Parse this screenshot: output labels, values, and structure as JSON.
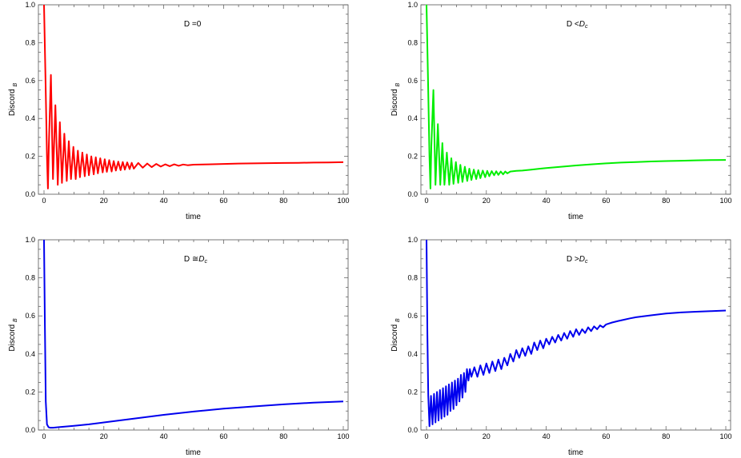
{
  "chart_data": [
    {
      "type": "line",
      "annotation": {
        "prefix": "D =0",
        "sym": "",
        "sub": ""
      },
      "xlabel": "time",
      "ylabel": {
        "main": "Discord",
        "sub": "B"
      },
      "xlim": [
        0,
        100
      ],
      "ylim": [
        0,
        1.0
      ],
      "xticks": [
        "0",
        "20",
        "40",
        "60",
        "80",
        "100"
      ],
      "yticks": [
        "0.0",
        "0.2",
        "0.4",
        "0.6",
        "0.8",
        "1.0"
      ],
      "grid": false,
      "series": [
        {
          "color": "#ff0000",
          "x": [
            0,
            0.5,
            1,
            1.3,
            1.6,
            2.3,
            3.0,
            3.8,
            4.6,
            5.3,
            6.0,
            6.8,
            7.6,
            8.3,
            9.0,
            9.8,
            10.6,
            11.3,
            12.0,
            12.8,
            13.6,
            14.3,
            15.0,
            15.8,
            16.6,
            17.3,
            18.0,
            18.8,
            19.6,
            20.3,
            21.0,
            21.8,
            22.6,
            23.3,
            24.0,
            24.8,
            25.6,
            26.3,
            27.0,
            27.8,
            28.6,
            29.3,
            30.0,
            31.5,
            33.0,
            34.5,
            36.0,
            37.5,
            39.0,
            40.5,
            42.0,
            43.5,
            45.0,
            46.5,
            48.0,
            50,
            55,
            60,
            65,
            70,
            75,
            80,
            85,
            90,
            95,
            100
          ],
          "y": [
            1.0,
            0.6,
            0.2,
            0.03,
            0.25,
            0.63,
            0.08,
            0.47,
            0.05,
            0.38,
            0.06,
            0.32,
            0.07,
            0.28,
            0.08,
            0.25,
            0.08,
            0.23,
            0.09,
            0.22,
            0.095,
            0.21,
            0.1,
            0.2,
            0.105,
            0.195,
            0.11,
            0.19,
            0.115,
            0.185,
            0.118,
            0.18,
            0.12,
            0.175,
            0.125,
            0.172,
            0.127,
            0.17,
            0.13,
            0.168,
            0.133,
            0.166,
            0.135,
            0.165,
            0.14,
            0.162,
            0.143,
            0.16,
            0.146,
            0.158,
            0.148,
            0.158,
            0.15,
            0.157,
            0.153,
            0.156,
            0.158,
            0.16,
            0.162,
            0.163,
            0.164,
            0.165,
            0.166,
            0.167,
            0.168,
            0.169
          ]
        }
      ]
    },
    {
      "type": "line",
      "annotation": {
        "prefix": "D <",
        "sym": "D",
        "sub": "c"
      },
      "xlabel": "time",
      "ylabel": {
        "main": "Discord",
        "sub": "B"
      },
      "xlim": [
        0,
        100
      ],
      "ylim": [
        0,
        1.0
      ],
      "xticks": [
        "0",
        "20",
        "40",
        "60",
        "80",
        "100"
      ],
      "yticks": [
        "0.0",
        "0.2",
        "0.4",
        "0.6",
        "0.8",
        "1.0"
      ],
      "grid": false,
      "series": [
        {
          "color": "#00ee00",
          "x": [
            0,
            0.5,
            1,
            1.3,
            1.6,
            2.3,
            3.0,
            3.8,
            4.6,
            5.3,
            6.0,
            6.8,
            7.6,
            8.3,
            9.0,
            9.8,
            10.6,
            11.3,
            12.0,
            12.8,
            13.6,
            14.3,
            15.0,
            15.8,
            16.6,
            17.3,
            18.0,
            18.8,
            19.6,
            20.3,
            21.0,
            21.8,
            22.6,
            23.3,
            24.0,
            24.8,
            25.6,
            26.3,
            27,
            28,
            30,
            32,
            35,
            38,
            40,
            45,
            50,
            55,
            60,
            65,
            70,
            75,
            80,
            85,
            90,
            95,
            100
          ],
          "y": [
            1.0,
            0.6,
            0.2,
            0.03,
            0.25,
            0.55,
            0.05,
            0.37,
            0.05,
            0.27,
            0.05,
            0.22,
            0.05,
            0.19,
            0.055,
            0.17,
            0.06,
            0.155,
            0.065,
            0.145,
            0.07,
            0.135,
            0.075,
            0.13,
            0.08,
            0.127,
            0.085,
            0.125,
            0.09,
            0.123,
            0.095,
            0.122,
            0.1,
            0.121,
            0.102,
            0.12,
            0.105,
            0.12,
            0.11,
            0.12,
            0.123,
            0.125,
            0.13,
            0.135,
            0.138,
            0.145,
            0.152,
            0.158,
            0.163,
            0.167,
            0.17,
            0.173,
            0.175,
            0.177,
            0.179,
            0.18,
            0.181
          ]
        }
      ]
    },
    {
      "type": "line",
      "annotation": {
        "prefix": "D ≅",
        "sym": "D",
        "sub": "c"
      },
      "xlabel": "time",
      "ylabel": {
        "main": "Discord",
        "sub": "B"
      },
      "xlim": [
        0,
        100
      ],
      "ylim": [
        0,
        1.0
      ],
      "xticks": [
        "0",
        "20",
        "40",
        "60",
        "80",
        "100"
      ],
      "yticks": [
        "0.0",
        "0.2",
        "0.4",
        "0.6",
        "0.8",
        "1.0"
      ],
      "grid": false,
      "series": [
        {
          "color": "#0000ee",
          "x": [
            0,
            0.3,
            0.6,
            1.0,
            1.5,
            2,
            3,
            5,
            10,
            15,
            20,
            30,
            40,
            50,
            60,
            70,
            80,
            90,
            100
          ],
          "y": [
            1.0,
            0.55,
            0.15,
            0.03,
            0.015,
            0.012,
            0.012,
            0.015,
            0.022,
            0.03,
            0.04,
            0.06,
            0.08,
            0.097,
            0.112,
            0.124,
            0.135,
            0.144,
            0.15
          ]
        }
      ]
    },
    {
      "type": "line",
      "annotation": {
        "prefix": "D >",
        "sym": "D",
        "sub": "c"
      },
      "xlabel": "time",
      "ylabel": {
        "main": "Discord",
        "sub": "B"
      },
      "xlim": [
        0,
        100
      ],
      "ylim": [
        0,
        1.0
      ],
      "xticks": [
        "0",
        "20",
        "40",
        "60",
        "80",
        "100"
      ],
      "yticks": [
        "0.0",
        "0.2",
        "0.4",
        "0.6",
        "0.8",
        "1.0"
      ],
      "grid": false,
      "series": [
        {
          "color": "#0000ee",
          "x": [
            0,
            0.3,
            0.6,
            1,
            1.5,
            2,
            2.5,
            3,
            3.5,
            4,
            4.5,
            5,
            5.5,
            6,
            6.5,
            7,
            7.5,
            8,
            8.5,
            9,
            9.5,
            10,
            10.5,
            11,
            11.5,
            12,
            12.5,
            13,
            13.5,
            14,
            14.5,
            15,
            16,
            17,
            18,
            19,
            20,
            21,
            22,
            23,
            24,
            25,
            26,
            27,
            28,
            29,
            30,
            31,
            32,
            33,
            34,
            35,
            36,
            37,
            38,
            39,
            40,
            41,
            42,
            43,
            44,
            45,
            46,
            47,
            48,
            49,
            50,
            51,
            52,
            53,
            54,
            55,
            56,
            57,
            58,
            59,
            60,
            62,
            64,
            66,
            68,
            70,
            75,
            80,
            85,
            90,
            95,
            100
          ],
          "y": [
            1.0,
            0.5,
            0.18,
            0.02,
            0.18,
            0.03,
            0.19,
            0.04,
            0.2,
            0.05,
            0.21,
            0.06,
            0.22,
            0.07,
            0.23,
            0.08,
            0.24,
            0.1,
            0.25,
            0.11,
            0.26,
            0.13,
            0.27,
            0.15,
            0.29,
            0.17,
            0.3,
            0.2,
            0.32,
            0.26,
            0.32,
            0.28,
            0.33,
            0.28,
            0.34,
            0.29,
            0.35,
            0.3,
            0.36,
            0.31,
            0.37,
            0.32,
            0.38,
            0.34,
            0.4,
            0.36,
            0.42,
            0.38,
            0.43,
            0.39,
            0.44,
            0.4,
            0.46,
            0.42,
            0.47,
            0.43,
            0.48,
            0.45,
            0.49,
            0.46,
            0.5,
            0.47,
            0.51,
            0.48,
            0.52,
            0.49,
            0.53,
            0.5,
            0.53,
            0.51,
            0.54,
            0.52,
            0.545,
            0.53,
            0.55,
            0.54,
            0.555,
            0.565,
            0.573,
            0.58,
            0.587,
            0.593,
            0.603,
            0.612,
            0.618,
            0.622,
            0.625,
            0.628
          ]
        }
      ]
    }
  ]
}
